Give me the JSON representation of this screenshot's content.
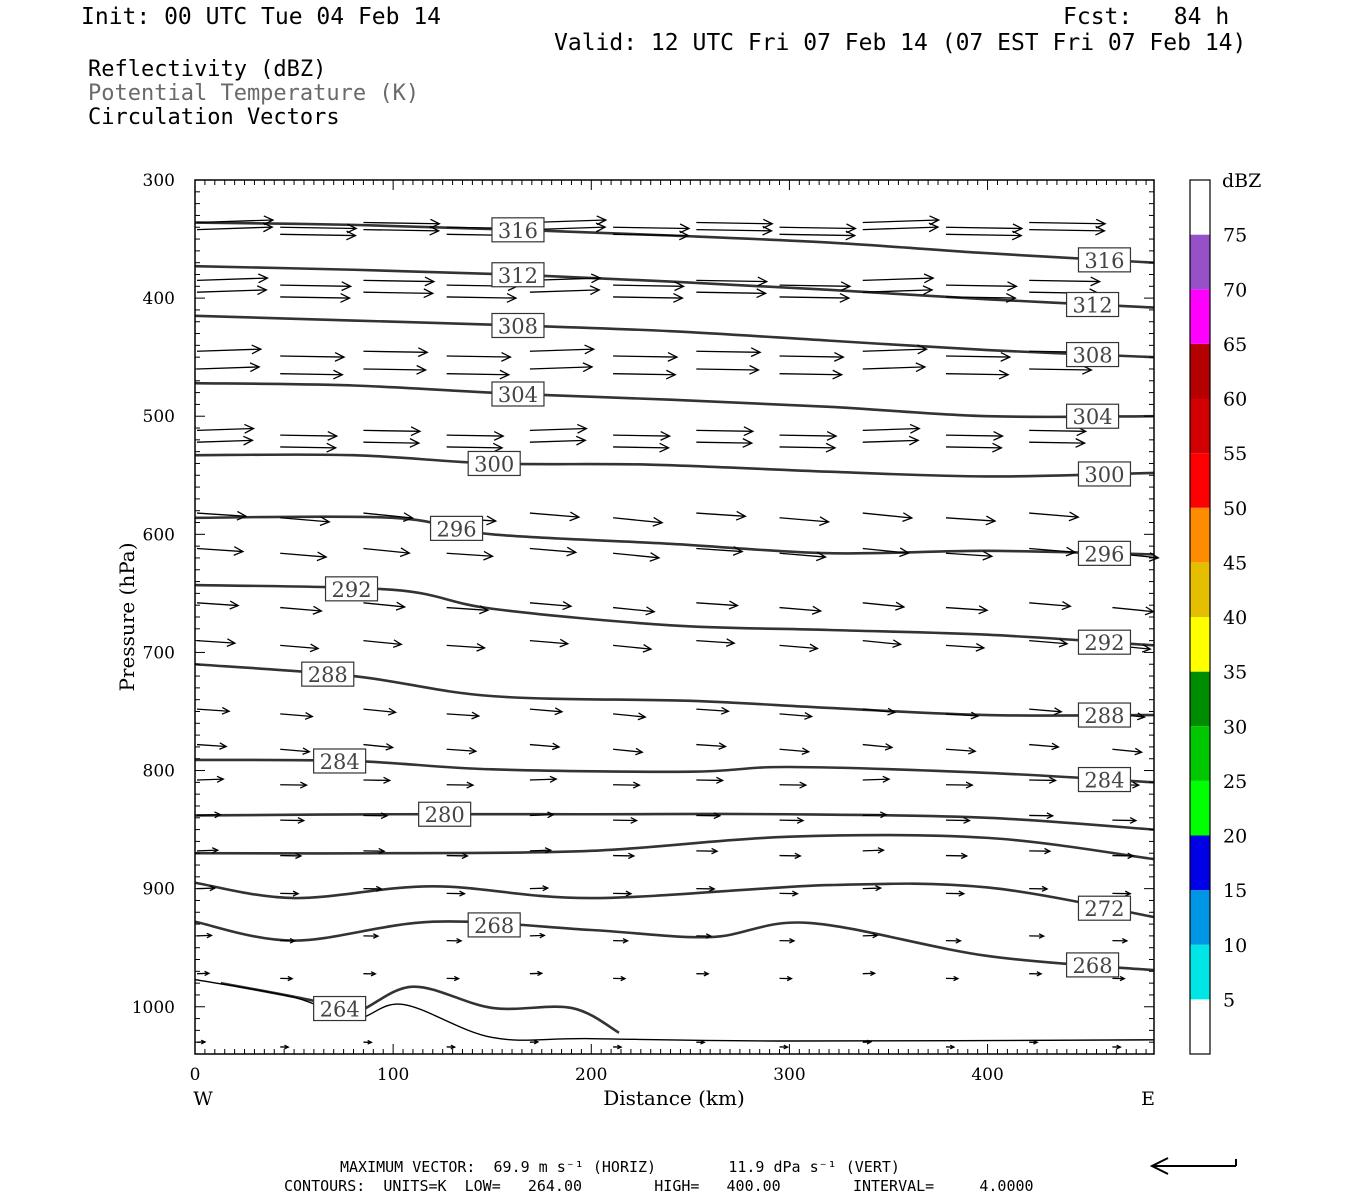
{
  "header": {
    "init": "Init: 00 UTC Tue 04 Feb 14",
    "fcst": "Fcst:   84 h",
    "valid": "Valid: 12 UTC Fri 07 Feb 14 (07 EST Fri 07 Feb 14)"
  },
  "fields": {
    "reflectivity": "Reflectivity (dBZ)",
    "theta": "Potential Temperature (K)",
    "vectors": "Circulation Vectors"
  },
  "footer": {
    "max_vector": "MAXIMUM VECTOR:  69.9 m s⁻¹ (HORIZ)        11.9 dPa s⁻¹ (VERT)",
    "contours": "CONTOURS:  UNITS=K  LOW=   264.00        HIGH=   400.00        INTERVAL=     4.0000"
  },
  "colors": {
    "contour": "#333333",
    "vector": "#000000",
    "axis": "#000000"
  },
  "chart_data": {
    "type": "cross-section",
    "xlabel": "Distance (km)",
    "ylabel": "Pressure (hPa)",
    "xlim": [
      0,
      484
    ],
    "ylim": [
      300,
      1040
    ],
    "y_scale": "linear, inverted (pressure increases downward)",
    "xticks": [
      0,
      100,
      200,
      300,
      400
    ],
    "yticks": [
      300,
      400,
      500,
      600,
      700,
      800,
      900,
      1000
    ],
    "x_end_labels": {
      "left": "W",
      "right": "E"
    },
    "colorbar": {
      "label": "dBZ",
      "levels": [
        5,
        10,
        15,
        20,
        25,
        30,
        35,
        40,
        45,
        50,
        55,
        60,
        65,
        70,
        75
      ],
      "colors": [
        "#ffffff",
        "#00e6e6",
        "#0096e6",
        "#0000e6",
        "#00ff00",
        "#00c800",
        "#008c00",
        "#ffff00",
        "#e6be00",
        "#ff8c00",
        "#ff0000",
        "#d20000",
        "#b40000",
        "#ff00ff",
        "#9650c8",
        "#ffffff"
      ]
    },
    "isentropes": [
      {
        "theta": 316,
        "label_positions_km": [
          163,
          459
        ],
        "points": [
          [
            0,
            336
          ],
          [
            80,
            338
          ],
          [
            160,
            342
          ],
          [
            240,
            347
          ],
          [
            320,
            353
          ],
          [
            400,
            362
          ],
          [
            484,
            370
          ]
        ]
      },
      {
        "theta": 312,
        "label_positions_km": [
          163,
          453
        ],
        "points": [
          [
            0,
            373
          ],
          [
            80,
            376
          ],
          [
            160,
            380
          ],
          [
            240,
            386
          ],
          [
            320,
            393
          ],
          [
            400,
            401
          ],
          [
            484,
            408
          ]
        ]
      },
      {
        "theta": 308,
        "label_positions_km": [
          163,
          453
        ],
        "points": [
          [
            0,
            415
          ],
          [
            80,
            419
          ],
          [
            160,
            423
          ],
          [
            240,
            428
          ],
          [
            320,
            436
          ],
          [
            400,
            444
          ],
          [
            484,
            450
          ]
        ]
      },
      {
        "theta": 304,
        "label_positions_km": [
          163,
          453
        ],
        "points": [
          [
            0,
            472
          ],
          [
            80,
            474
          ],
          [
            160,
            481
          ],
          [
            240,
            486
          ],
          [
            320,
            492
          ],
          [
            400,
            500
          ],
          [
            484,
            500
          ]
        ]
      },
      {
        "theta": 300,
        "label_positions_km": [
          151,
          459
        ],
        "points": [
          [
            0,
            533
          ],
          [
            80,
            533
          ],
          [
            150,
            540
          ],
          [
            230,
            541
          ],
          [
            320,
            547
          ],
          [
            400,
            551
          ],
          [
            484,
            548
          ]
        ]
      },
      {
        "theta": 296,
        "label_positions_km": [
          132,
          459
        ],
        "points": [
          [
            0,
            586
          ],
          [
            100,
            586
          ],
          [
            150,
            600
          ],
          [
            240,
            608
          ],
          [
            320,
            616
          ],
          [
            400,
            614
          ],
          [
            484,
            617
          ]
        ]
      },
      {
        "theta": 292,
        "label_positions_km": [
          79,
          459
        ],
        "points": [
          [
            0,
            643
          ],
          [
            100,
            647
          ],
          [
            150,
            663
          ],
          [
            240,
            677
          ],
          [
            320,
            681
          ],
          [
            400,
            685
          ],
          [
            484,
            694
          ]
        ]
      },
      {
        "theta": 288,
        "label_positions_km": [
          67,
          459
        ],
        "points": [
          [
            0,
            710
          ],
          [
            80,
            720
          ],
          [
            150,
            737
          ],
          [
            250,
            741
          ],
          [
            320,
            747
          ],
          [
            400,
            753
          ],
          [
            484,
            753
          ]
        ]
      },
      {
        "theta": 284,
        "label_positions_km": [
          73,
          459
        ],
        "points": [
          [
            0,
            791
          ],
          [
            80,
            792
          ],
          [
            150,
            799
          ],
          [
            250,
            801
          ],
          [
            300,
            797
          ],
          [
            400,
            802
          ],
          [
            484,
            810
          ]
        ]
      },
      {
        "theta": 280,
        "label_positions_km": [
          126,
          null
        ],
        "points": [
          [
            0,
            838
          ],
          [
            100,
            837
          ],
          [
            200,
            837
          ],
          [
            300,
            837
          ],
          [
            400,
            840
          ],
          [
            484,
            850
          ]
        ]
      },
      {
        "theta": 276,
        "label_positions_km": [],
        "points": [
          [
            0,
            870
          ],
          [
            100,
            870
          ],
          [
            200,
            868
          ],
          [
            300,
            856
          ],
          [
            400,
            857
          ],
          [
            484,
            875
          ]
        ]
      },
      {
        "theta": 272,
        "label_positions_km": [
          459
        ],
        "points": [
          [
            0,
            895
          ],
          [
            50,
            908
          ],
          [
            120,
            898
          ],
          [
            200,
            908
          ],
          [
            320,
            897
          ],
          [
            400,
            899
          ],
          [
            484,
            924
          ]
        ]
      },
      {
        "theta": 268,
        "label_positions_km": [
          151,
          453
        ],
        "points": [
          [
            0,
            928
          ],
          [
            50,
            944
          ],
          [
            120,
            928
          ],
          [
            200,
            935
          ],
          [
            260,
            941
          ],
          [
            310,
            929
          ],
          [
            400,
            957
          ],
          [
            484,
            969
          ]
        ]
      },
      {
        "theta": 264,
        "label_positions_km": [
          73
        ],
        "points": [
          [
            13,
            980
          ],
          [
            60,
            995
          ],
          [
            80,
            1005
          ],
          [
            110,
            983
          ],
          [
            150,
            1001
          ],
          [
            190,
            1001
          ],
          [
            214,
            1022
          ]
        ]
      }
    ],
    "max_vector": {
      "horizontal_m_s": 69.9,
      "vertical_dPa_s": 11.9
    }
  }
}
